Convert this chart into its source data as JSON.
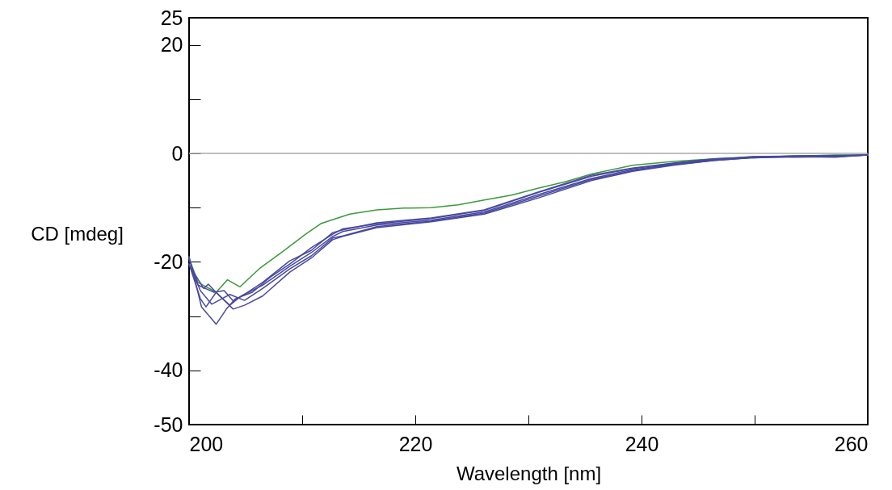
{
  "chart_data": {
    "type": "line",
    "xlabel": "Wavelength [nm]",
    "ylabel": "CD [mdeg]",
    "xlim": [
      200,
      260
    ],
    "ylim": [
      -50,
      25
    ],
    "xticks": [
      200,
      {
        "value": 210,
        "label": null
      },
      220,
      {
        "value": 230,
        "label": null
      },
      240,
      {
        "value": 250,
        "label": null
      },
      260
    ],
    "yticks": [
      25,
      20,
      {
        "value": 10,
        "label": null
      },
      0,
      {
        "value": -10,
        "label": null
      },
      -20,
      {
        "value": -30,
        "label": null
      },
      -40,
      -50
    ],
    "grid": false,
    "line_style": "solid",
    "marker": "none",
    "ref_lines": [
      {
        "axis": "y",
        "value": 0,
        "color": "#aaaaaa"
      }
    ],
    "series": [
      {
        "color": "#3a9a3a",
        "x": [
          200,
          200.8,
          202.4,
          203.4,
          204.5,
          206.3,
          208.4,
          210.3,
          211.7,
          213.6,
          214.2,
          216.6,
          219,
          221.4,
          223.8,
          226.1,
          228.5,
          230.9,
          233.3,
          235.6,
          239.2,
          242.8,
          246.4,
          249.9,
          253.5,
          257.1,
          260
        ],
        "values": [
          -19.3,
          -23.8,
          -25.6,
          -23.3,
          -24.6,
          -21.1,
          -17.9,
          -14.9,
          -12.9,
          -11.6,
          -11.2,
          -10.4,
          -10.1,
          -10.0,
          -9.5,
          -8.6,
          -7.7,
          -6.4,
          -5.2,
          -3.8,
          -2.2,
          -1.5,
          -1.0,
          -0.6,
          -0.5,
          -0.3,
          -0.3
        ]
      },
      {
        "color": "#4848a0",
        "x": [
          200,
          201.1,
          202.4,
          203.3,
          204.1,
          205.6,
          207.2,
          208.9,
          210.8,
          212.7,
          213.6,
          216.6,
          221.4,
          226.1,
          230.9,
          235.6,
          239.2,
          242.8,
          246.4,
          249.9,
          253.5,
          257.1,
          260
        ],
        "values": [
          -19,
          -28.3,
          -31.5,
          -28.7,
          -26.8,
          -25.6,
          -22.8,
          -20.4,
          -17.4,
          -14.9,
          -13.9,
          -13.0,
          -12.0,
          -10.5,
          -7.2,
          -4.2,
          -2.8,
          -1.9,
          -1.1,
          -0.7,
          -0.5,
          -0.5,
          -0.3
        ]
      },
      {
        "color": "#4848a0",
        "x": [
          200,
          201,
          201.5,
          202.4,
          203.9,
          204.9,
          206.5,
          208.9,
          210.8,
          212.7,
          213.6,
          216.6,
          221.4,
          226.1,
          230.9,
          235.6,
          239.2,
          242.8,
          246.4,
          249.9,
          253.5,
          257.1,
          260
        ],
        "values": [
          -20.4,
          -26.8,
          -28.3,
          -25.6,
          -28.7,
          -28.0,
          -26.3,
          -21.9,
          -19.3,
          -15.9,
          -15.3,
          -13.7,
          -12.6,
          -11.2,
          -8.2,
          -5.0,
          -3.3,
          -2.2,
          -1.3,
          -0.8,
          -0.6,
          -0.7,
          -0.3
        ]
      },
      {
        "color": "#4848a0",
        "x": [
          200.4,
          201.3,
          201.7,
          202.7,
          203.6,
          204.6,
          206.5,
          208.9,
          210.8,
          212.7,
          213.6,
          216.6,
          221.4,
          226.1,
          230.9,
          235.6,
          239.2,
          242.8,
          246.4,
          249.9,
          253.5,
          257.1,
          260
        ],
        "values": [
          -21.9,
          -24.9,
          -24.1,
          -26.3,
          -28.0,
          -26.3,
          -24.3,
          -20.8,
          -18.3,
          -15.3,
          -14.4,
          -13.2,
          -12.3,
          -10.8,
          -7.6,
          -4.6,
          -3.0,
          -2.0,
          -1.2,
          -0.6,
          -0.7,
          -0.6,
          -0.3
        ]
      },
      {
        "color": "#4848a0",
        "x": [
          200,
          200.8,
          202.2,
          203.1,
          203.9,
          204.9,
          206.5,
          208.9,
          210.8,
          212.7,
          213.6,
          216.6,
          221.4,
          226.1,
          230.9,
          235.6,
          239.2,
          242.8,
          246.4,
          249.9,
          253.5,
          257.1,
          260
        ],
        "values": [
          -19.5,
          -24.3,
          -25.6,
          -25.3,
          -27.2,
          -26.0,
          -23.8,
          -19.8,
          -17.9,
          -14.6,
          -14.1,
          -12.8,
          -11.9,
          -10.4,
          -7.1,
          -4.0,
          -2.7,
          -1.8,
          -1.0,
          -0.7,
          -0.5,
          -0.4,
          -0.3
        ]
      },
      {
        "color": "#4848a0",
        "x": [
          200,
          201,
          202,
          202.9,
          203.6,
          204.9,
          206.5,
          208.9,
          210.8,
          212.7,
          213.6,
          216.6,
          221.4,
          226.1,
          230.9,
          235.6,
          239.2,
          242.8,
          246.4,
          249.9,
          253.5,
          257.1,
          260
        ],
        "values": [
          -20.4,
          -25.3,
          -27.8,
          -26.8,
          -26.0,
          -27.1,
          -24.9,
          -21.3,
          -18.9,
          -15.6,
          -15.2,
          -13.5,
          -12.5,
          -11.0,
          -7.9,
          -4.8,
          -3.2,
          -2.1,
          -1.3,
          -0.8,
          -0.6,
          -0.6,
          -0.3
        ]
      }
    ]
  }
}
